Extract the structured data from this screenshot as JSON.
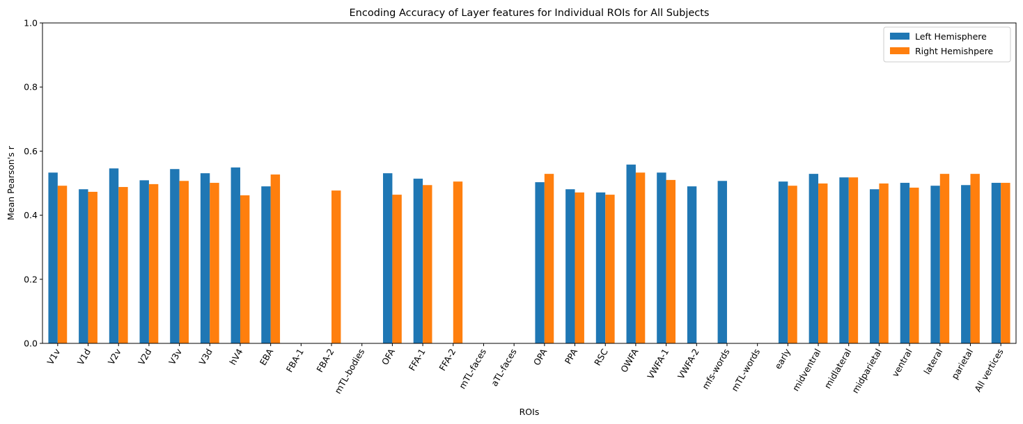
{
  "chart_data": {
    "type": "bar",
    "title": "Encoding Accuracy of Layer features for Individual ROIs for All Subjects",
    "xlabel": "ROIs",
    "ylabel": "Mean Pearson's r",
    "ylim": [
      0,
      1.0
    ],
    "yticks": [
      "0.0",
      "0.2",
      "0.4",
      "0.6",
      "0.8",
      "1.0"
    ],
    "legend_position": "top-right",
    "categories": [
      "V1v",
      "V1d",
      "V2v",
      "V2d",
      "V3v",
      "V3d",
      "hV4",
      "EBA",
      "FBA-1",
      "FBA-2",
      "mTL-bodies",
      "OFA",
      "FFA-1",
      "FFA-2",
      "mTL-faces",
      "aTL-faces",
      "OPA",
      "PPA",
      "RSC",
      "OWFA",
      "VWFA-1",
      "VWFA-2",
      "mfs-words",
      "mTL-words",
      "early",
      "midventral",
      "midlateral",
      "midparietal",
      "ventral",
      "lateral",
      "parietal",
      "All vertices"
    ],
    "series": [
      {
        "name": "Left Hemisphere",
        "color": "#1f77b4",
        "values": [
          0.533,
          0.481,
          0.546,
          0.509,
          0.544,
          0.531,
          0.549,
          0.49,
          null,
          null,
          null,
          0.531,
          0.514,
          null,
          null,
          null,
          0.503,
          0.481,
          0.471,
          0.558,
          0.533,
          0.49,
          0.507,
          null,
          0.505,
          0.529,
          0.518,
          0.481,
          0.501,
          0.492,
          0.494,
          0.501
        ]
      },
      {
        "name": "Right Hemishpere",
        "color": "#ff7f0e",
        "values": [
          0.492,
          0.473,
          0.488,
          0.497,
          0.507,
          0.501,
          0.462,
          0.527,
          null,
          0.477,
          null,
          0.464,
          0.494,
          0.505,
          null,
          null,
          0.529,
          0.471,
          0.464,
          0.533,
          0.51,
          null,
          null,
          null,
          0.492,
          0.499,
          0.518,
          0.499,
          0.486,
          0.529,
          0.529,
          0.501
        ]
      }
    ]
  }
}
